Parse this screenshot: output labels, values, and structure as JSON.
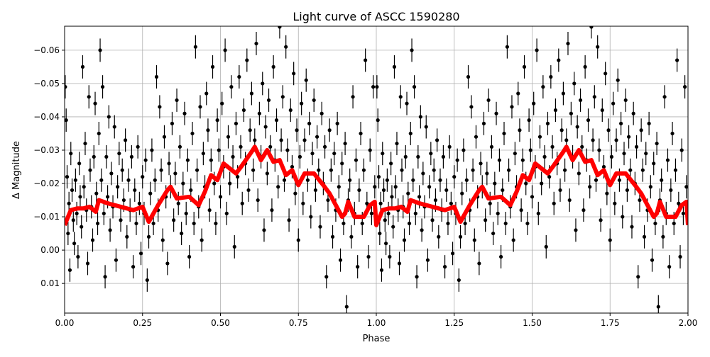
{
  "chart_data": {
    "type": "scatter",
    "title": "Light curve of ASCC 1590280",
    "xlabel": "Phase",
    "ylabel": "Δ Magnitude",
    "xlim": [
      0,
      2
    ],
    "ylim": [
      0.0189,
      -0.0672
    ],
    "y_inverted": true,
    "grid": true,
    "xticks": [
      0,
      0.25,
      0.5,
      0.75,
      1.0,
      1.25,
      1.5,
      1.75,
      2.0
    ],
    "xtick_labels": [
      "0.00",
      "0.25",
      "0.50",
      "0.75",
      "1.00",
      "1.25",
      "1.50",
      "1.75",
      "2.00"
    ],
    "yticks": [
      -0.06,
      -0.05,
      -0.04,
      -0.03,
      -0.02,
      -0.01,
      0.0,
      0.01
    ],
    "ytick_labels": [
      "−0.06",
      "−0.05",
      "−0.04",
      "−0.03",
      "−0.02",
      "−0.01",
      "0.00",
      "0.01"
    ],
    "phase_repeated": true,
    "colors": {
      "points": "#000000",
      "binned_curve": "#ff0000",
      "grid": "#b0b0b0"
    },
    "points": {
      "typical_error": 0.0035,
      "phase_mag": [
        [
          0.002,
          -0.049
        ],
        [
          0.005,
          -0.039
        ],
        [
          0.008,
          -0.022
        ],
        [
          0.011,
          -0.005
        ],
        [
          0.014,
          -0.014
        ],
        [
          0.017,
          0.006
        ],
        [
          0.02,
          -0.029
        ],
        [
          0.024,
          -0.018
        ],
        [
          0.028,
          -0.009
        ],
        [
          0.031,
          -0.002
        ],
        [
          0.035,
          -0.021
        ],
        [
          0.039,
          -0.011
        ],
        [
          0.043,
          0.002
        ],
        [
          0.047,
          -0.026
        ],
        [
          0.05,
          -0.016
        ],
        [
          0.054,
          -0.007
        ],
        [
          0.058,
          -0.055
        ],
        [
          0.062,
          -0.019
        ],
        [
          0.066,
          -0.032
        ],
        [
          0.07,
          -0.012
        ],
        [
          0.074,
          0.004
        ],
        [
          0.078,
          -0.046
        ],
        [
          0.082,
          -0.024
        ],
        [
          0.086,
          -0.013
        ],
        [
          0.09,
          -0.003
        ],
        [
          0.094,
          -0.028
        ],
        [
          0.098,
          -0.044
        ],
        [
          0.102,
          -0.017
        ],
        [
          0.106,
          -0.008
        ],
        [
          0.11,
          -0.035
        ],
        [
          0.114,
          -0.06
        ],
        [
          0.118,
          -0.021
        ],
        [
          0.122,
          -0.049
        ],
        [
          0.126,
          -0.011
        ],
        [
          0.13,
          0.008
        ],
        [
          0.134,
          -0.028
        ],
        [
          0.138,
          -0.016
        ],
        [
          0.142,
          -0.04
        ],
        [
          0.146,
          -0.006
        ],
        [
          0.15,
          -0.023
        ],
        [
          0.155,
          -0.013
        ],
        [
          0.16,
          -0.037
        ],
        [
          0.165,
          0.003
        ],
        [
          0.17,
          -0.019
        ],
        [
          0.175,
          -0.029
        ],
        [
          0.18,
          -0.009
        ],
        [
          0.185,
          -0.024
        ],
        [
          0.19,
          -0.015
        ],
        [
          0.195,
          -0.033
        ],
        [
          0.2,
          -0.004
        ],
        [
          0.205,
          -0.021
        ],
        [
          0.21,
          -0.012
        ],
        [
          0.215,
          -0.028
        ],
        [
          0.22,
          0.005
        ],
        [
          0.225,
          -0.018
        ],
        [
          0.23,
          -0.008
        ],
        [
          0.235,
          -0.031
        ],
        [
          0.24,
          -0.014
        ],
        [
          0.245,
          0.001
        ],
        [
          0.25,
          -0.022
        ],
        [
          0.255,
          -0.011
        ],
        [
          0.26,
          -0.027
        ],
        [
          0.265,
          0.009
        ],
        [
          0.27,
          -0.004
        ],
        [
          0.275,
          -0.017
        ],
        [
          0.28,
          -0.03
        ],
        [
          0.285,
          -0.008
        ],
        [
          0.29,
          -0.021
        ],
        [
          0.295,
          -0.052
        ],
        [
          0.3,
          -0.012
        ],
        [
          0.305,
          -0.043
        ],
        [
          0.31,
          -0.024
        ],
        [
          0.315,
          -0.003
        ],
        [
          0.32,
          -0.034
        ],
        [
          0.325,
          -0.016
        ],
        [
          0.33,
          0.004
        ],
        [
          0.335,
          -0.026
        ],
        [
          0.34,
          -0.019
        ],
        [
          0.345,
          -0.038
        ],
        [
          0.35,
          -0.009
        ],
        [
          0.355,
          -0.023
        ],
        [
          0.36,
          -0.045
        ],
        [
          0.365,
          -0.014
        ],
        [
          0.37,
          -0.031
        ],
        [
          0.375,
          -0.005
        ],
        [
          0.38,
          -0.02
        ],
        [
          0.385,
          -0.041
        ],
        [
          0.39,
          -0.011
        ],
        [
          0.395,
          -0.027
        ],
        [
          0.4,
          0.002
        ],
        [
          0.405,
          -0.018
        ],
        [
          0.41,
          -0.035
        ],
        [
          0.415,
          -0.008
        ],
        [
          0.42,
          -0.061
        ],
        [
          0.425,
          -0.024
        ],
        [
          0.43,
          -0.013
        ],
        [
          0.435,
          -0.043
        ],
        [
          0.44,
          -0.003
        ],
        [
          0.445,
          -0.029
        ],
        [
          0.45,
          -0.019
        ],
        [
          0.455,
          -0.047
        ],
        [
          0.46,
          -0.036
        ],
        [
          0.465,
          -0.012
        ],
        [
          0.47,
          -0.027
        ],
        [
          0.475,
          -0.055
        ],
        [
          0.48,
          -0.02
        ],
        [
          0.485,
          -0.008
        ],
        [
          0.49,
          -0.039
        ],
        [
          0.495,
          -0.03
        ],
        [
          0.5,
          -0.016
        ],
        [
          0.505,
          -0.044
        ],
        [
          0.51,
          -0.025
        ],
        [
          0.515,
          -0.06
        ],
        [
          0.52,
          -0.011
        ],
        [
          0.525,
          -0.034
        ],
        [
          0.53,
          -0.02
        ],
        [
          0.535,
          -0.049
        ],
        [
          0.54,
          -0.028
        ],
        [
          0.545,
          -0.001
        ],
        [
          0.55,
          -0.038
        ],
        [
          0.555,
          -0.022
        ],
        [
          0.56,
          -0.052
        ],
        [
          0.565,
          -0.031
        ],
        [
          0.57,
          -0.014
        ],
        [
          0.575,
          -0.042
        ],
        [
          0.58,
          -0.026
        ],
        [
          0.585,
          -0.057
        ],
        [
          0.59,
          -0.018
        ],
        [
          0.595,
          -0.036
        ],
        [
          0.6,
          -0.047
        ],
        [
          0.605,
          -0.024
        ],
        [
          0.61,
          -0.033
        ],
        [
          0.615,
          -0.062
        ],
        [
          0.62,
          -0.015
        ],
        [
          0.625,
          -0.041
        ],
        [
          0.63,
          -0.028
        ],
        [
          0.635,
          -0.05
        ],
        [
          0.64,
          -0.006
        ],
        [
          0.645,
          -0.037
        ],
        [
          0.65,
          -0.023
        ],
        [
          0.655,
          -0.045
        ],
        [
          0.66,
          -0.031
        ],
        [
          0.665,
          -0.012
        ],
        [
          0.67,
          -0.055
        ],
        [
          0.675,
          -0.027
        ],
        [
          0.68,
          -0.039
        ],
        [
          0.685,
          -0.019
        ],
        [
          0.69,
          -0.067
        ],
        [
          0.695,
          -0.033
        ],
        [
          0.7,
          -0.046
        ],
        [
          0.705,
          -0.021
        ],
        [
          0.71,
          -0.061
        ],
        [
          0.715,
          -0.03
        ],
        [
          0.72,
          -0.009
        ],
        [
          0.725,
          -0.042
        ],
        [
          0.73,
          -0.025
        ],
        [
          0.735,
          -0.053
        ],
        [
          0.74,
          -0.017
        ],
        [
          0.745,
          -0.036
        ],
        [
          0.75,
          -0.003
        ],
        [
          0.755,
          -0.028
        ],
        [
          0.76,
          -0.044
        ],
        [
          0.765,
          -0.014
        ],
        [
          0.77,
          -0.033
        ],
        [
          0.775,
          -0.051
        ],
        [
          0.78,
          -0.021
        ],
        [
          0.785,
          -0.038
        ],
        [
          0.79,
          -0.01
        ],
        [
          0.795,
          -0.029
        ],
        [
          0.8,
          -0.045
        ],
        [
          0.805,
          -0.018
        ],
        [
          0.81,
          -0.034
        ],
        [
          0.815,
          -0.024
        ],
        [
          0.82,
          -0.007
        ],
        [
          0.825,
          -0.041
        ],
        [
          0.83,
          -0.02
        ],
        [
          0.835,
          -0.031
        ],
        [
          0.84,
          0.008
        ],
        [
          0.845,
          -0.015
        ],
        [
          0.85,
          -0.036
        ],
        [
          0.855,
          -0.024
        ],
        [
          0.86,
          -0.004
        ],
        [
          0.865,
          -0.029
        ],
        [
          0.87,
          -0.012
        ],
        [
          0.875,
          -0.038
        ],
        [
          0.88,
          -0.019
        ],
        [
          0.885,
          0.003
        ],
        [
          0.89,
          -0.026
        ],
        [
          0.895,
          -0.008
        ],
        [
          0.9,
          -0.032
        ],
        [
          0.905,
          0.017
        ],
        [
          0.91,
          -0.015
        ],
        [
          0.915,
          -0.021
        ],
        [
          0.92,
          -0.004
        ],
        [
          0.925,
          -0.046
        ],
        [
          0.93,
          -0.011
        ],
        [
          0.935,
          -0.027
        ],
        [
          0.94,
          0.005
        ],
        [
          0.945,
          -0.018
        ],
        [
          0.95,
          -0.035
        ],
        [
          0.955,
          -0.008
        ],
        [
          0.96,
          -0.024
        ],
        [
          0.965,
          -0.057
        ],
        [
          0.97,
          -0.014
        ],
        [
          0.975,
          0.002
        ],
        [
          0.98,
          -0.03
        ],
        [
          0.985,
          -0.011
        ],
        [
          0.99,
          -0.049
        ],
        [
          0.995,
          -0.019
        ]
      ]
    },
    "binned_curve": {
      "phase": [
        0.0,
        0.02,
        0.04,
        0.06,
        0.08,
        0.1,
        0.11,
        0.14,
        0.18,
        0.22,
        0.25,
        0.27,
        0.3,
        0.33,
        0.34,
        0.36,
        0.4,
        0.43,
        0.45,
        0.47,
        0.49,
        0.51,
        0.53,
        0.55,
        0.57,
        0.6,
        0.61,
        0.63,
        0.65,
        0.67,
        0.69,
        0.71,
        0.73,
        0.75,
        0.77,
        0.8,
        0.83,
        0.85,
        0.87,
        0.89,
        0.9,
        0.91,
        0.93,
        0.96,
        0.98,
        0.995
      ],
      "mag": [
        -0.0075,
        -0.012,
        -0.0125,
        -0.0125,
        -0.013,
        -0.0115,
        -0.015,
        -0.014,
        -0.013,
        -0.012,
        -0.013,
        -0.0085,
        -0.0135,
        -0.018,
        -0.019,
        -0.0155,
        -0.016,
        -0.0135,
        -0.0175,
        -0.0225,
        -0.021,
        -0.026,
        -0.0245,
        -0.023,
        -0.0255,
        -0.0295,
        -0.031,
        -0.027,
        -0.03,
        -0.0265,
        -0.027,
        -0.0225,
        -0.024,
        -0.0195,
        -0.023,
        -0.023,
        -0.0195,
        -0.017,
        -0.0135,
        -0.01,
        -0.011,
        -0.0145,
        -0.01,
        -0.01,
        -0.0135,
        -0.0145
      ]
    }
  }
}
